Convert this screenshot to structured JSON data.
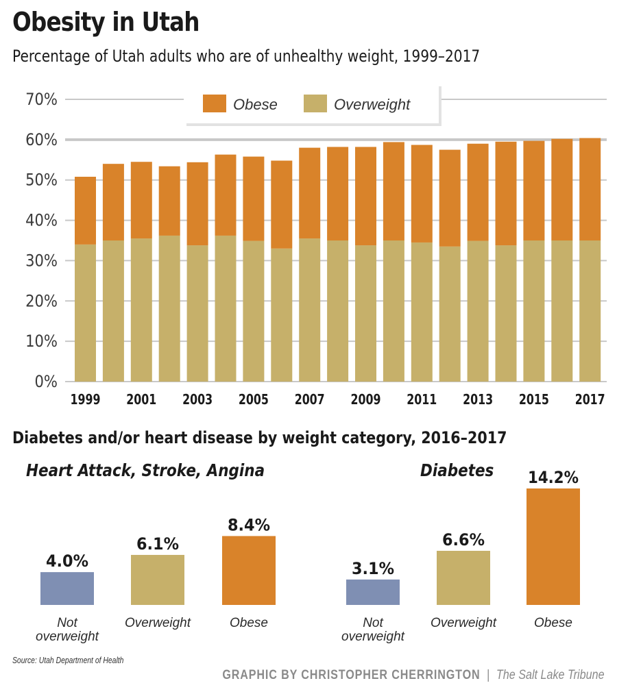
{
  "title": "Obesity in Utah",
  "subtitle": "Percentage of Utah adults who are of unhealthy weight, 1999–2017",
  "colors": {
    "obese": "#d9832a",
    "overweight": "#c6b06a",
    "not_overweight": "#7f8fb3",
    "grid": "#c8c8c8",
    "text": "#1a1a1a"
  },
  "chart_data": [
    {
      "type": "bar",
      "stacked": true,
      "title": "Percentage of Utah adults who are of unhealthy weight, 1999–2017",
      "xlabel": "",
      "ylabel": "",
      "ylim": [
        0,
        70
      ],
      "yticks": [
        0,
        10,
        20,
        30,
        40,
        50,
        60,
        70
      ],
      "ytick_labels": [
        "0%",
        "10%",
        "20%",
        "30%",
        "40%",
        "50%",
        "60%",
        "70%"
      ],
      "grid": true,
      "legend_position": "top-center",
      "categories": [
        "1999",
        "2000",
        "2001",
        "2002",
        "2003",
        "2004",
        "2005",
        "2006",
        "2007",
        "2008",
        "2009",
        "2010",
        "2011",
        "2012",
        "2013",
        "2014",
        "2015",
        "2016",
        "2017"
      ],
      "xtick_labels": [
        "1999",
        "",
        "2001",
        "",
        "2003",
        "",
        "2005",
        "",
        "2007",
        "",
        "2009",
        "",
        "2011",
        "",
        "2013",
        "",
        "2015",
        "",
        "2017"
      ],
      "series": [
        {
          "name": "Overweight",
          "color": "#c6b06a",
          "values": [
            34.0,
            35.0,
            35.5,
            36.2,
            33.8,
            36.2,
            34.9,
            33.0,
            35.5,
            35.0,
            33.8,
            35.0,
            34.5,
            33.5,
            34.9,
            33.8,
            35.0,
            35.0,
            35.0
          ]
        },
        {
          "name": "Obese",
          "color": "#d9832a",
          "values": [
            16.8,
            19.0,
            19.0,
            17.2,
            20.6,
            20.1,
            20.9,
            21.8,
            22.5,
            23.2,
            24.4,
            24.4,
            24.2,
            24.0,
            24.1,
            25.7,
            24.7,
            25.2,
            25.4
          ]
        }
      ],
      "legend": [
        {
          "label": "Obese",
          "color": "#d9832a"
        },
        {
          "label": "Overweight",
          "color": "#c6b06a"
        }
      ]
    },
    {
      "type": "bar",
      "title": "Heart Attack, Stroke, Angina",
      "ylim": [
        0,
        15
      ],
      "categories": [
        "Not overweight",
        "Overweight",
        "Obese"
      ],
      "category_lines": [
        [
          "Not",
          "overweight"
        ],
        [
          "Overweight"
        ],
        [
          "Obese"
        ]
      ],
      "values": [
        4.0,
        6.1,
        8.4
      ],
      "value_labels": [
        "4.0%",
        "6.1%",
        "8.4%"
      ],
      "colors": [
        "#7f8fb3",
        "#c6b06a",
        "#d9832a"
      ]
    },
    {
      "type": "bar",
      "title": "Diabetes",
      "ylim": [
        0,
        15
      ],
      "categories": [
        "Not overweight",
        "Overweight",
        "Obese"
      ],
      "category_lines": [
        [
          "Not",
          "overweight"
        ],
        [
          "Overweight"
        ],
        [
          "Obese"
        ]
      ],
      "values": [
        3.1,
        6.6,
        14.2
      ],
      "value_labels": [
        "3.1%",
        "6.6%",
        "14.2%"
      ],
      "colors": [
        "#7f8fb3",
        "#c6b06a",
        "#d9832a"
      ]
    }
  ],
  "section2_title": "Diabetes and/or heart disease by weight category, 2016–2017",
  "source": "Source: Utah Department of Health",
  "credit": {
    "byline": "GRAPHIC BY CHRISTOPHER CHERRINGTON",
    "separator": "|",
    "publication": "The Salt Lake Tribune"
  }
}
